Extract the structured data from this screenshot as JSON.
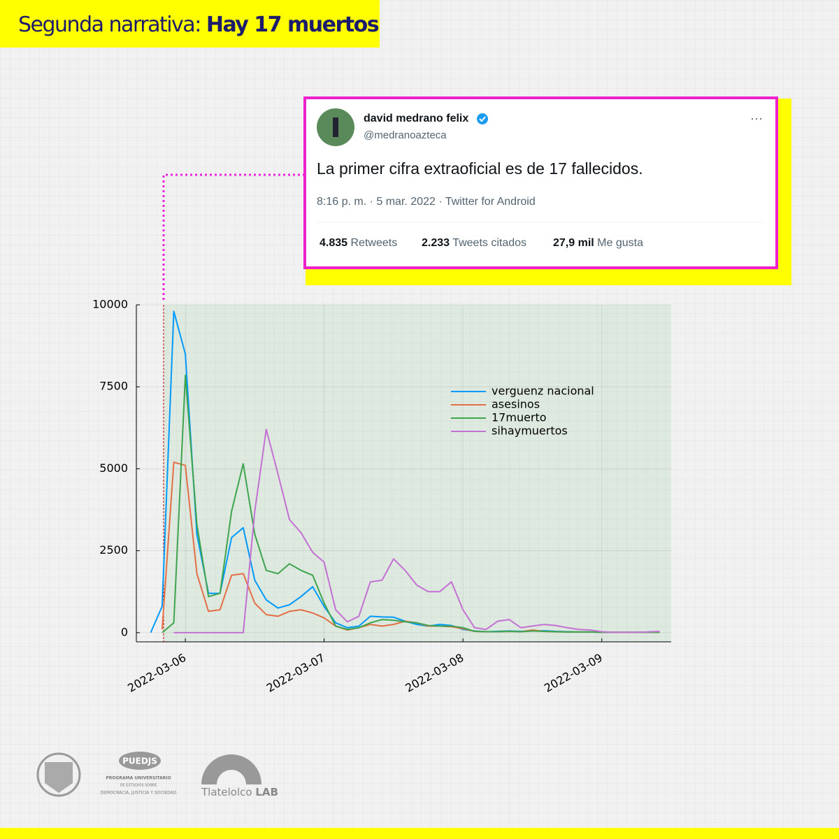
{
  "header": {
    "title_plain": "Segunda narrativa:",
    "title_bold": "Hay 17 muertos"
  },
  "tweet": {
    "name": "david medrano felix",
    "handle": "@medranoazteca",
    "text": "La primer cifra extraoficial es de 17 fallecidos.",
    "meta": "8:16 p. m. · 5 mar. 2022 · Twitter for Android",
    "stats": [
      {
        "count": "4.835",
        "label": "Retweets"
      },
      {
        "count": "2.233",
        "label": "Tweets citados"
      },
      {
        "count": "27,9 mil",
        "label": "Me gusta"
      }
    ]
  },
  "chart_data": {
    "type": "line",
    "x": [
      5.75,
      5.833,
      5.917,
      6,
      6.083,
      6.167,
      6.25,
      6.333,
      6.417,
      6.5,
      6.583,
      6.667,
      6.75,
      6.833,
      6.917,
      7,
      7.083,
      7.167,
      7.25,
      7.333,
      7.417,
      7.5,
      7.583,
      7.667,
      7.75,
      7.833,
      7.917,
      8,
      8.083,
      8.167,
      8.25,
      8.333,
      8.417,
      8.5,
      8.583,
      8.667,
      8.75,
      8.833,
      8.917,
      9,
      9.083,
      9.167,
      9.25,
      9.333,
      9.417
    ],
    "xlim": [
      5.647,
      9.5
    ],
    "xticks": [
      {
        "value": 6,
        "label": "2022-03-06"
      },
      {
        "value": 7,
        "label": "2022-03-07"
      },
      {
        "value": 8,
        "label": "2022-03-08"
      },
      {
        "value": 9,
        "label": "2022-03-09"
      }
    ],
    "ylim": [
      -280,
      10000
    ],
    "yticks": [
      0,
      2500,
      5000,
      7500,
      10000
    ],
    "grid": true,
    "legend": "upper right",
    "series": [
      {
        "name": "verguenz  nacional",
        "color": "#009afa",
        "values": [
          0,
          800,
          9800,
          8500,
          3000,
          1200,
          1200,
          2900,
          3200,
          1600,
          1000,
          750,
          850,
          1100,
          1400,
          800,
          300,
          150,
          200,
          500,
          480,
          470,
          350,
          250,
          200,
          250,
          220,
          100,
          50,
          30,
          40,
          50,
          40,
          50,
          60,
          40,
          30,
          20,
          20,
          10,
          10,
          10,
          10,
          20,
          30
        ]
      },
      {
        "name": "asesinos",
        "color": "#e36f47",
        "values": [
          null,
          100,
          5200,
          5100,
          1800,
          650,
          700,
          1750,
          1800,
          900,
          550,
          500,
          650,
          700,
          600,
          450,
          200,
          80,
          150,
          250,
          200,
          250,
          350,
          300,
          200,
          200,
          180,
          120,
          40,
          30,
          30,
          40,
          30,
          80,
          40,
          30,
          20,
          20,
          20,
          10,
          10,
          10,
          10,
          10,
          10
        ]
      },
      {
        "name": "17muerto",
        "color": "#3ea44e",
        "values": [
          null,
          0,
          300,
          7850,
          3300,
          1100,
          1200,
          3700,
          5150,
          3000,
          1900,
          1800,
          2100,
          1900,
          1750,
          900,
          200,
          100,
          150,
          300,
          400,
          380,
          330,
          300,
          220,
          200,
          200,
          150,
          40,
          30,
          30,
          40,
          30,
          50,
          40,
          30,
          20,
          20,
          20,
          10,
          10,
          10,
          10,
          10,
          10
        ]
      },
      {
        "name": "sihaymuertos",
        "color": "#c371d2",
        "values": [
          null,
          null,
          0,
          0,
          0,
          0,
          0,
          0,
          0,
          3700,
          6200,
          4850,
          3450,
          3050,
          2450,
          2150,
          700,
          330,
          500,
          1550,
          1600,
          2250,
          1900,
          1450,
          1250,
          1250,
          1550,
          700,
          150,
          100,
          350,
          400,
          150,
          200,
          250,
          220,
          150,
          100,
          80,
          30,
          10,
          10,
          10,
          20,
          40
        ]
      }
    ]
  },
  "logos": {
    "puedjs": "PUEDJS",
    "puedjs_lines": [
      "PROGRAMA UNIVERSITARIO",
      "DE ESTUDIOS SOBRE",
      "DEMOCRACIA, JUSTICIA Y SOCIEDAD"
    ],
    "lab_name": "Tlatelolco",
    "lab_suffix": "LAB"
  }
}
